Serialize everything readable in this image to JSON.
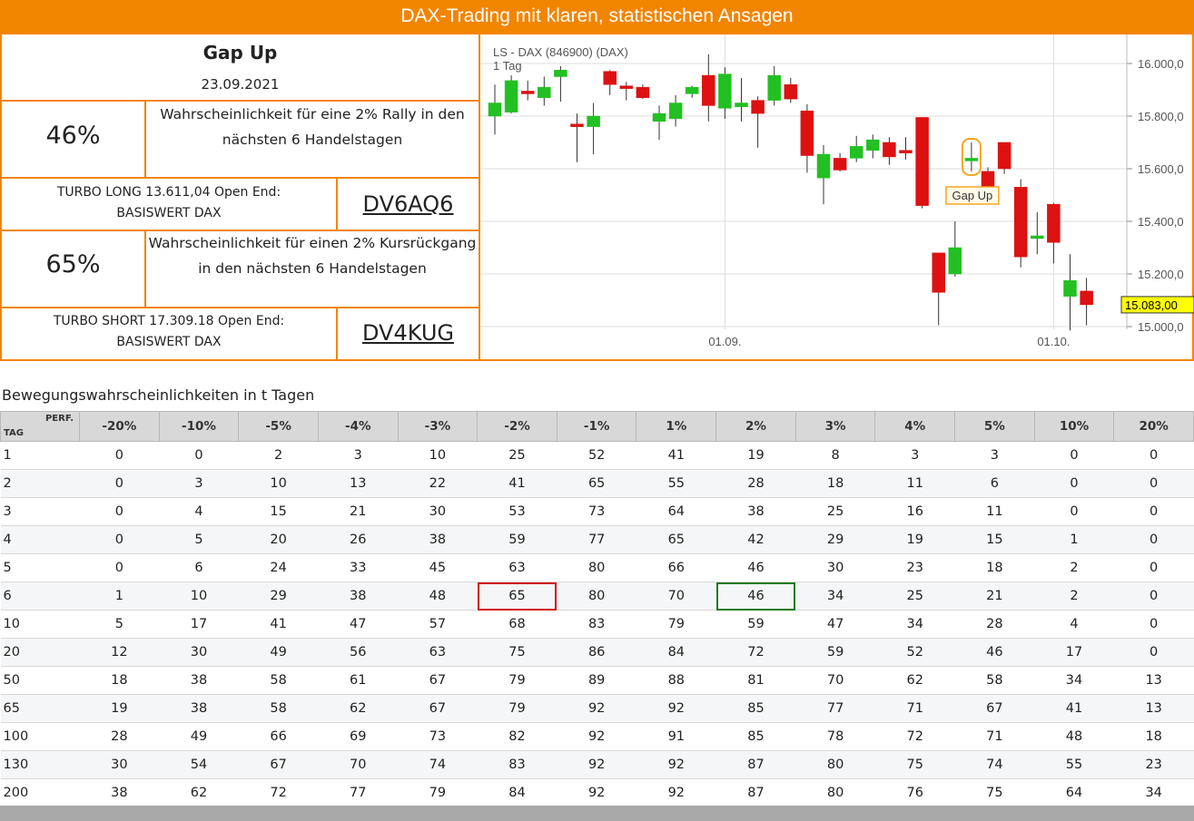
{
  "header": {
    "title": "DAX-Trading mit klaren, statistischen Ansagen"
  },
  "signal": {
    "name": "Gap Up",
    "date": "23.09.2021"
  },
  "long": {
    "probability": "46%",
    "description": "Wahrscheinlichkeit für eine 2% Rally in den nächsten 6 Handelstagen",
    "turbo": "TURBO LONG 13.611,04 Open End: BASISWERT DAX",
    "code": "DV6AQ6"
  },
  "short": {
    "probability": "65%",
    "description": "Wahrscheinlichkeit für einen 2% Kursrückgang in den nächsten 6 Handelstagen",
    "turbo": "TURBO SHORT 17.309.18 Open End: BASISWERT DAX",
    "code": "DV4KUG"
  },
  "chart_data": {
    "type": "candlestick",
    "title": "LS - DAX (846900) (DAX)",
    "subtitle": "1 Tag",
    "ylim": [
      14960,
      16060
    ],
    "y_ticks": [
      "16.000,0",
      "15.800,0",
      "15.600,0",
      "15.400,0",
      "15.200,0",
      "15.000,0"
    ],
    "x_ticks": [
      "01.09.",
      "01.10."
    ],
    "last_price": "15.083,00",
    "annotation": "Gap Up",
    "annotation_index": 29,
    "vlines_at_index": [
      14,
      34
    ],
    "grid": true,
    "colors": {
      "up": "#22c022",
      "down": "#dd1111",
      "annotation": "#f5a623",
      "price_badge": "#ffff00"
    },
    "candles": [
      {
        "o": 15800,
        "h": 15920,
        "l": 15730,
        "c": 15850
      },
      {
        "o": 15815,
        "h": 15955,
        "l": 15810,
        "c": 15935
      },
      {
        "o": 15895,
        "h": 15935,
        "l": 15860,
        "c": 15890
      },
      {
        "o": 15870,
        "h": 15950,
        "l": 15840,
        "c": 15910
      },
      {
        "o": 15950,
        "h": 15990,
        "l": 15855,
        "c": 15975
      },
      {
        "o": 15770,
        "h": 15810,
        "l": 15625,
        "c": 15765
      },
      {
        "o": 15760,
        "h": 15850,
        "l": 15655,
        "c": 15800
      },
      {
        "o": 15970,
        "h": 15975,
        "l": 15880,
        "c": 15920
      },
      {
        "o": 15915,
        "h": 15930,
        "l": 15860,
        "c": 15910
      },
      {
        "o": 15910,
        "h": 15920,
        "l": 15865,
        "c": 15870
      },
      {
        "o": 15780,
        "h": 15840,
        "l": 15710,
        "c": 15810
      },
      {
        "o": 15790,
        "h": 15880,
        "l": 15760,
        "c": 15850
      },
      {
        "o": 15885,
        "h": 15915,
        "l": 15870,
        "c": 15910
      },
      {
        "o": 15955,
        "h": 16035,
        "l": 15780,
        "c": 15840
      },
      {
        "o": 15830,
        "h": 15985,
        "l": 15790,
        "c": 15960
      },
      {
        "o": 15835,
        "h": 15945,
        "l": 15780,
        "c": 15850
      },
      {
        "o": 15860,
        "h": 15875,
        "l": 15680,
        "c": 15810
      },
      {
        "o": 15860,
        "h": 15990,
        "l": 15840,
        "c": 15955
      },
      {
        "o": 15920,
        "h": 15945,
        "l": 15850,
        "c": 15865
      },
      {
        "o": 15820,
        "h": 15845,
        "l": 15585,
        "c": 15650
      },
      {
        "o": 15565,
        "h": 15690,
        "l": 15465,
        "c": 15655
      },
      {
        "o": 15640,
        "h": 15660,
        "l": 15590,
        "c": 15595
      },
      {
        "o": 15640,
        "h": 15725,
        "l": 15625,
        "c": 15685
      },
      {
        "o": 15670,
        "h": 15730,
        "l": 15640,
        "c": 15710
      },
      {
        "o": 15700,
        "h": 15720,
        "l": 15615,
        "c": 15645
      },
      {
        "o": 15670,
        "h": 15720,
        "l": 15635,
        "c": 15660
      },
      {
        "o": 15795,
        "h": 15795,
        "l": 15450,
        "c": 15460
      },
      {
        "o": 15280,
        "h": 15280,
        "l": 15005,
        "c": 15130
      },
      {
        "o": 15200,
        "h": 15400,
        "l": 15190,
        "c": 15300
      },
      {
        "o": 15630,
        "h": 15700,
        "l": 15590,
        "c": 15640
      },
      {
        "o": 15590,
        "h": 15605,
        "l": 15505,
        "c": 15530
      },
      {
        "o": 15700,
        "h": 15700,
        "l": 15580,
        "c": 15600
      },
      {
        "o": 15530,
        "h": 15560,
        "l": 15225,
        "c": 15265
      },
      {
        "o": 15345,
        "h": 15435,
        "l": 15275,
        "c": 15345
      },
      {
        "o": 15465,
        "h": 15470,
        "l": 15240,
        "c": 15320
      },
      {
        "o": 15115,
        "h": 15275,
        "l": 14985,
        "c": 15175
      },
      {
        "o": 15135,
        "h": 15185,
        "l": 15005,
        "c": 15083
      }
    ]
  },
  "table": {
    "caption": "Bewegungswahrscheinlichkeiten in t Tagen",
    "corner_top": "PERF.",
    "corner_bottom": "TAG",
    "columns": [
      "-20%",
      "-10%",
      "-5%",
      "-4%",
      "-3%",
      "-2%",
      "-1%",
      "1%",
      "2%",
      "3%",
      "4%",
      "5%",
      "10%",
      "20%"
    ],
    "rows": [
      {
        "day": "1",
        "values": [
          "0",
          "0",
          "2",
          "3",
          "10",
          "25",
          "52",
          "41",
          "19",
          "8",
          "3",
          "3",
          "0",
          "0"
        ]
      },
      {
        "day": "2",
        "values": [
          "0",
          "3",
          "10",
          "13",
          "22",
          "41",
          "65",
          "55",
          "28",
          "18",
          "11",
          "6",
          "0",
          "0"
        ]
      },
      {
        "day": "3",
        "values": [
          "0",
          "4",
          "15",
          "21",
          "30",
          "53",
          "73",
          "64",
          "38",
          "25",
          "16",
          "11",
          "0",
          "0"
        ]
      },
      {
        "day": "4",
        "values": [
          "0",
          "5",
          "20",
          "26",
          "38",
          "59",
          "77",
          "65",
          "42",
          "29",
          "19",
          "15",
          "1",
          "0"
        ]
      },
      {
        "day": "5",
        "values": [
          "0",
          "6",
          "24",
          "33",
          "45",
          "63",
          "80",
          "66",
          "46",
          "30",
          "23",
          "18",
          "2",
          "0"
        ]
      },
      {
        "day": "6",
        "values": [
          "1",
          "10",
          "29",
          "38",
          "48",
          "65",
          "80",
          "70",
          "46",
          "34",
          "25",
          "21",
          "2",
          "0"
        ]
      },
      {
        "day": "10",
        "values": [
          "5",
          "17",
          "41",
          "47",
          "57",
          "68",
          "83",
          "79",
          "59",
          "47",
          "34",
          "28",
          "4",
          "0"
        ]
      },
      {
        "day": "20",
        "values": [
          "12",
          "30",
          "49",
          "56",
          "63",
          "75",
          "86",
          "84",
          "72",
          "59",
          "52",
          "46",
          "17",
          "0"
        ]
      },
      {
        "day": "50",
        "values": [
          "18",
          "38",
          "58",
          "61",
          "67",
          "79",
          "89",
          "88",
          "81",
          "70",
          "62",
          "58",
          "34",
          "13"
        ]
      },
      {
        "day": "65",
        "values": [
          "19",
          "38",
          "58",
          "62",
          "67",
          "79",
          "92",
          "92",
          "85",
          "77",
          "71",
          "67",
          "41",
          "13"
        ]
      },
      {
        "day": "100",
        "values": [
          "28",
          "49",
          "66",
          "69",
          "73",
          "82",
          "92",
          "91",
          "85",
          "78",
          "72",
          "71",
          "48",
          "18"
        ]
      },
      {
        "day": "130",
        "values": [
          "30",
          "54",
          "67",
          "70",
          "74",
          "83",
          "92",
          "92",
          "87",
          "80",
          "75",
          "74",
          "55",
          "23"
        ]
      },
      {
        "day": "200",
        "values": [
          "38",
          "62",
          "72",
          "77",
          "79",
          "84",
          "92",
          "92",
          "87",
          "80",
          "76",
          "75",
          "64",
          "34"
        ]
      }
    ],
    "highlight": [
      {
        "row": 5,
        "col": 5,
        "color": "red"
      },
      {
        "row": 5,
        "col": 8,
        "color": "green"
      }
    ]
  }
}
